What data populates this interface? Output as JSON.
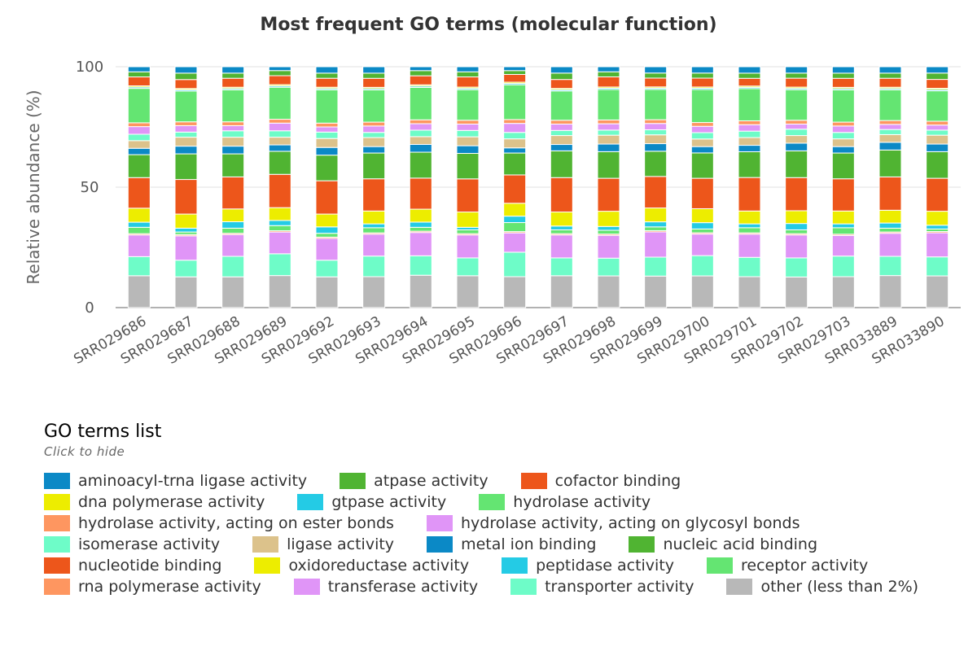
{
  "chart_data": {
    "type": "bar",
    "stacked": true,
    "title": "Most frequent GO terms (molecular function)",
    "ylabel": "Relative abundance (%)",
    "xlabel": "",
    "ylim": [
      0,
      100
    ],
    "yticks": [
      0,
      50,
      100
    ],
    "grid": true,
    "legend_position": "bottom",
    "categories": [
      "SRR029686",
      "SRR029687",
      "SRR029688",
      "SRR029689",
      "SRR029692",
      "SRR029693",
      "SRR029694",
      "SRR029695",
      "SRR029696",
      "SRR029697",
      "SRR029698",
      "SRR029699",
      "SRR029700",
      "SRR029701",
      "SRR029702",
      "SRR029703",
      "SRR033889",
      "SRR033890"
    ],
    "series": [
      {
        "name": "other (less than 2%)",
        "color": "#b8b8b8",
        "values": [
          12.5,
          12,
          12,
          12.5,
          12,
          12,
          12.5,
          12.5,
          12,
          12.5,
          12.5,
          12.5,
          12.5,
          12,
          12,
          12,
          12.5,
          12.5
        ]
      },
      {
        "name": "transporter activity",
        "color": "#6efcc8",
        "values": [
          7.5,
          6.5,
          8,
          8.5,
          6.5,
          8,
          7.5,
          7,
          9.5,
          7,
          7,
          7.5,
          8,
          7.5,
          7.5,
          8,
          7.5,
          7.5
        ]
      },
      {
        "name": "transferase activity",
        "color": "#e095f7",
        "values": [
          8.5,
          9.5,
          8.5,
          8.5,
          8.5,
          8.5,
          9,
          9,
          7.5,
          9,
          9,
          10,
          8.5,
          9,
          9,
          8,
          9,
          9.5
        ]
      },
      {
        "name": "rna polymerase activity",
        "color": "#fe9660",
        "values": [
          0.5,
          0.5,
          0.5,
          0.5,
          0.5,
          0.5,
          0.5,
          0.5,
          0.5,
          0.5,
          0.5,
          0.5,
          0.5,
          0.5,
          0.5,
          0.5,
          0.5,
          0.5
        ]
      },
      {
        "name": "receptor activity",
        "color": "#64e572",
        "values": [
          2.5,
          1,
          2,
          2,
          1.5,
          2,
          1.5,
          1.5,
          3.5,
          1.5,
          1.5,
          1.5,
          1.5,
          2,
          1.5,
          2.5,
          1.5,
          1
        ]
      },
      {
        "name": "peptidase activity",
        "color": "#24cbe5",
        "values": [
          2,
          1.5,
          2.5,
          2,
          2.5,
          1.5,
          2,
          1,
          2.5,
          1.5,
          1.5,
          2,
          2.5,
          1.5,
          2.5,
          1.5,
          2,
          1.5
        ]
      },
      {
        "name": "oxidoreductase activity",
        "color": "#eded00",
        "values": [
          5.5,
          5.5,
          5,
          5,
          5,
          5,
          5,
          6,
          5,
          5.5,
          6,
          5.5,
          5.5,
          5,
          5,
          5,
          5,
          5.5
        ]
      },
      {
        "name": "nucleotide binding",
        "color": "#ed561b",
        "values": [
          12,
          13.5,
          12.5,
          13,
          13,
          12.5,
          12,
          13,
          11,
          13.5,
          13,
          12.5,
          12,
          13,
          13,
          12.5,
          13,
          13
        ]
      },
      {
        "name": "nucleic acid binding",
        "color": "#50b432",
        "values": [
          9,
          10,
          9,
          9,
          10,
          10,
          10,
          10,
          8.5,
          10.5,
          10.5,
          10,
          10,
          10,
          10.5,
          10,
          10.5,
          10.5
        ]
      },
      {
        "name": "metal ion binding",
        "color": "#0b89c6",
        "values": [
          2.5,
          3,
          3,
          2.5,
          3,
          2.5,
          3,
          3,
          2,
          2.5,
          3,
          3,
          2.5,
          2.5,
          3,
          2.5,
          3,
          3
        ]
      },
      {
        "name": "ligase activity",
        "color": "#dcc28b",
        "values": [
          3,
          3.5,
          3.5,
          3,
          3.5,
          3.5,
          3,
          3.5,
          3.5,
          3.5,
          3.5,
          3.5,
          3,
          3,
          3,
          3,
          3,
          3.5
        ]
      },
      {
        "name": "isomerase activity",
        "color": "#6efcc8",
        "values": [
          2.5,
          2,
          2.5,
          2.5,
          2.5,
          2,
          2.5,
          2.5,
          2.5,
          2,
          2,
          2,
          2.5,
          2.5,
          2.5,
          2.5,
          2,
          2
        ]
      },
      {
        "name": "hydrolase activity, acting on glycosyl bonds",
        "color": "#e095f7",
        "values": [
          3,
          2.5,
          2,
          3,
          2,
          2.5,
          2.5,
          2.5,
          3.5,
          2.5,
          2.5,
          2.5,
          2.5,
          2.5,
          2,
          2.5,
          2,
          2
        ]
      },
      {
        "name": "hydrolase activity, acting on ester bonds",
        "color": "#fe9660",
        "values": [
          1.5,
          1.5,
          1.5,
          1.5,
          1.5,
          1.5,
          1.5,
          1.5,
          1.5,
          1.5,
          1.5,
          1.5,
          1.5,
          1.5,
          1.5,
          1.5,
          1.5,
          1.5
        ]
      },
      {
        "name": "hydrolase activity",
        "color": "#64e572",
        "values": [
          13.5,
          12,
          12.5,
          12.5,
          13,
          12.5,
          12.5,
          12,
          13.5,
          11.5,
          12,
          12,
          13,
          12.5,
          12,
          12.5,
          12,
          12
        ]
      },
      {
        "name": "gtpase activity",
        "color": "#24cbe5",
        "values": [
          0.5,
          0.5,
          0.5,
          0.5,
          0.5,
          0.5,
          0.5,
          0.5,
          0.5,
          0.5,
          0.5,
          0.5,
          0.5,
          0.5,
          0.5,
          0.5,
          0.5,
          0.5
        ]
      },
      {
        "name": "dna polymerase activity",
        "color": "#eded00",
        "values": [
          0.5,
          0.5,
          0.5,
          0.5,
          0.5,
          0.5,
          0.5,
          0.5,
          0.5,
          0.5,
          0.5,
          0.5,
          0.5,
          0.5,
          0.5,
          0.5,
          0.5,
          0.5
        ]
      },
      {
        "name": "cofactor binding",
        "color": "#ed561b",
        "values": [
          3.5,
          3.5,
          3.5,
          3.5,
          3.5,
          3.5,
          3.5,
          4,
          3,
          3.5,
          4,
          3.5,
          3.5,
          3,
          3.5,
          3.5,
          3.5,
          3.5
        ]
      },
      {
        "name": "atpase activity",
        "color": "#50b432",
        "values": [
          2,
          2.5,
          2,
          2,
          2,
          2,
          2,
          2,
          1.5,
          2.5,
          2,
          2,
          2,
          2,
          2,
          2,
          2,
          2.5
        ]
      },
      {
        "name": "aminoacyl-trna ligase activity",
        "color": "#0b89c6",
        "values": [
          2,
          2.5,
          2.5,
          1.5,
          2.5,
          2.5,
          1.5,
          2,
          1.5,
          2.5,
          2,
          2.5,
          2.5,
          2.5,
          2.5,
          2.5,
          2.5,
          2.5
        ]
      }
    ]
  },
  "legend": {
    "title": "GO terms list",
    "hint": "Click to hide",
    "items": [
      {
        "label": "aminoacyl-trna ligase activity",
        "color": "#0b89c6"
      },
      {
        "label": "atpase activity",
        "color": "#50b432"
      },
      {
        "label": "cofactor binding",
        "color": "#ed561b"
      },
      {
        "label": "dna polymerase activity",
        "color": "#eded00"
      },
      {
        "label": "gtpase activity",
        "color": "#24cbe5"
      },
      {
        "label": "hydrolase activity",
        "color": "#64e572"
      },
      {
        "label": "hydrolase activity, acting on ester bonds",
        "color": "#fe9660"
      },
      {
        "label": "hydrolase activity, acting on glycosyl bonds",
        "color": "#e095f7"
      },
      {
        "label": "isomerase activity",
        "color": "#6efcc8"
      },
      {
        "label": "ligase activity",
        "color": "#dcc28b"
      },
      {
        "label": "metal ion binding",
        "color": "#0b89c6"
      },
      {
        "label": "nucleic acid binding",
        "color": "#50b432"
      },
      {
        "label": "nucleotide binding",
        "color": "#ed561b"
      },
      {
        "label": "oxidoreductase activity",
        "color": "#eded00"
      },
      {
        "label": "peptidase activity",
        "color": "#24cbe5"
      },
      {
        "label": "receptor activity",
        "color": "#64e572"
      },
      {
        "label": "rna polymerase activity",
        "color": "#fe9660"
      },
      {
        "label": "transferase activity",
        "color": "#e095f7"
      },
      {
        "label": "transporter activity",
        "color": "#6efcc8"
      },
      {
        "label": "other (less than 2%)",
        "color": "#b8b8b8"
      }
    ]
  }
}
